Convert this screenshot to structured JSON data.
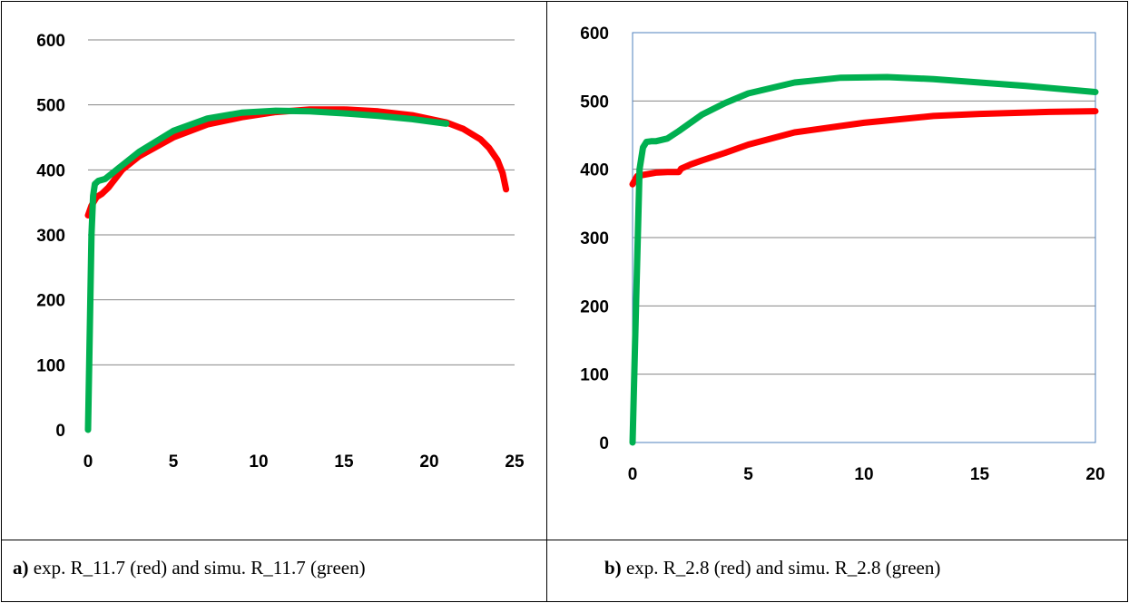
{
  "chart_data": [
    {
      "type": "line",
      "title": "",
      "xlabel": "",
      "ylabel": "",
      "xlim": [
        0,
        25
      ],
      "ylim": [
        0,
        600
      ],
      "xticks": [
        0,
        5,
        10,
        15,
        20,
        25
      ],
      "yticks": [
        0,
        100,
        200,
        300,
        400,
        500,
        600
      ],
      "grid": "horizontal",
      "plot_frame": false,
      "colors": {
        "red": "#ff0000",
        "green": "#00b050",
        "grid": "#868686"
      },
      "series": [
        {
          "color": "#ff0000",
          "x": [
            0,
            0.2,
            0.5,
            0.8,
            1.2,
            2,
            3,
            5,
            7,
            9,
            11,
            13,
            15,
            17,
            19,
            21,
            22,
            23,
            23.5,
            24,
            24.3,
            24.5
          ],
          "y": [
            330,
            345,
            358,
            363,
            373,
            400,
            421,
            450,
            470,
            481,
            489,
            493,
            493,
            490,
            484,
            473,
            463,
            447,
            434,
            415,
            395,
            370
          ]
        },
        {
          "color": "#00b050",
          "x": [
            0,
            0.1,
            0.2,
            0.3,
            0.4,
            0.6,
            1,
            2,
            3,
            5,
            7,
            9,
            11,
            13,
            15,
            17,
            19,
            21
          ],
          "y": [
            0,
            150,
            300,
            360,
            378,
            383,
            386,
            407,
            428,
            460,
            479,
            488,
            491,
            490,
            487,
            483,
            478,
            471
          ]
        }
      ],
      "caption": {
        "label": "a)",
        "text": " exp. R_11.7 (red) and simu. R_11.7 (green)"
      }
    },
    {
      "type": "line",
      "title": "",
      "xlabel": "",
      "ylabel": "",
      "xlim": [
        0,
        20
      ],
      "ylim": [
        0,
        600
      ],
      "xticks": [
        0,
        5,
        10,
        15,
        20
      ],
      "yticks": [
        0,
        100,
        200,
        300,
        400,
        500,
        600
      ],
      "grid": "horizontal",
      "plot_frame": true,
      "colors": {
        "red": "#ff0000",
        "green": "#00b050",
        "grid": "#868686",
        "frame": "#4f81bd"
      },
      "series": [
        {
          "color": "#ff0000",
          "x": [
            0,
            0.2,
            0.5,
            1,
            1.5,
            2,
            2.1,
            2.5,
            3,
            4,
            5,
            7,
            10,
            13,
            15,
            18,
            20
          ],
          "y": [
            378,
            390,
            392,
            395,
            396,
            396,
            401,
            407,
            413,
            424,
            436,
            454,
            468,
            478,
            481,
            484,
            485
          ]
        },
        {
          "color": "#00b050",
          "x": [
            0,
            0.15,
            0.3,
            0.45,
            0.6,
            0.8,
            1,
            1.5,
            2,
            3,
            4,
            5,
            7,
            9,
            11,
            13,
            15,
            17,
            20
          ],
          "y": [
            0,
            200,
            400,
            432,
            440,
            441,
            441,
            445,
            456,
            480,
            497,
            511,
            527,
            534,
            535,
            532,
            527,
            522,
            513
          ]
        }
      ],
      "caption": {
        "label": "b)",
        "text": " exp. R_2.8 (red) and simu. R_2.8 (green)"
      }
    }
  ]
}
